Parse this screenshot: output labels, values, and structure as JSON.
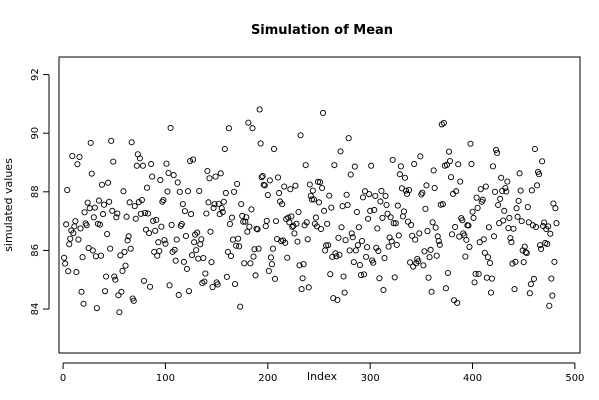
{
  "chart_data": {
    "type": "scatter",
    "title": "Simulation of Mean",
    "xlabel": "Index",
    "ylabel": "simulated values",
    "xlim": [
      -4,
      505
    ],
    "ylim": [
      82.5,
      92.6
    ],
    "xticks": [
      "0",
      "100",
      "200",
      "300",
      "400",
      "500"
    ],
    "yticks": [
      "84",
      "86",
      "88",
      "90",
      "92"
    ],
    "grid": false,
    "marker": "open-circle",
    "series": [
      {
        "values": [
          85.75,
          85.55,
          86.89,
          88.06,
          85.29,
          86.21,
          86.4,
          86.68,
          89.22,
          86.59,
          86.82,
          87.0,
          85.26,
          88.94,
          86.37,
          89.19,
          86.75,
          84.59,
          85.77,
          84.18,
          87.3,
          86.92,
          86.86,
          87.63,
          86.08,
          87.44,
          89.67,
          88.62,
          86.0,
          87.13,
          87.46,
          85.8,
          84.03,
          86.91,
          87.7,
          86.88,
          85.82,
          88.24,
          87.24,
          87.56,
          84.61,
          85.11,
          86.56,
          88.31,
          87.66,
          86.06,
          89.74,
          87.35,
          89.03,
          85.11,
          85.0,
          87.13,
          87.26,
          84.47,
          83.89,
          85.83,
          84.59,
          85.3,
          88.02,
          85.95,
          85.48,
          87.15,
          86.34,
          86.48,
          87.64,
          86.06,
          89.69,
          84.36,
          84.28,
          87.51,
          87.08,
          88.89,
          89.28,
          87.65,
          89.14,
          87.25,
          87.72,
          88.89,
          84.96,
          87.28,
          86.71,
          88.14,
          87.26,
          86.59,
          84.76,
          88.95,
          88.52,
          87.01,
          85.95,
          86.67,
          87.04,
          85.82,
          86.28,
          85.98,
          88.4,
          86.81,
          87.66,
          87.72,
          86.35,
          86.23,
          88.96,
          88.01,
          88.64,
          84.81,
          90.18,
          86.87,
          85.95,
          88.57,
          86.02,
          85.65,
          86.37,
          88.32,
          84.48,
          88.0,
          86.84,
          86.9,
          87.58,
          85.61,
          87.34,
          86.49,
          85.37,
          88.02,
          84.61,
          89.05,
          87.24,
          85.84,
          89.1,
          86.28,
          86.54,
          86.01,
          86.61,
          85.72,
          88.03,
          86.21,
          86.38,
          84.89,
          85.74,
          84.94,
          85.21,
          87.26,
          88.71,
          87.64,
          88.46,
          86.64,
          85.6,
          84.75,
          87.45,
          87.58,
          88.52,
          84.91,
          84.84,
          87.59,
          87.24,
          88.63,
          87.44,
          87.31,
          87.66,
          89.46,
          87.96,
          85.1,
          85.95,
          90.17,
          86.9,
          85.81,
          87.12,
          86.37,
          88.0,
          84.85,
          86.16,
          88.27,
          86.4,
          86.14,
          84.08,
          87.58,
          87.18,
          86.98,
          85.56,
          86.98,
          87.13,
          86.64,
          90.36,
          86.81,
          85.56,
          87.4,
          90.17,
          85.79,
          86.04,
          85.15,
          86.74,
          86.72,
          86.06,
          90.81,
          89.65,
          88.5,
          88.54,
          88.24,
          88.22,
          86.83,
          87.01,
          87.89,
          85.3,
          88.39,
          85.76,
          85.53,
          86.06,
          89.46,
          85.03,
          87.0,
          86.39,
          88.49,
          87.96,
          87.67,
          86.32,
          87.58,
          86.34,
          88.18,
          86.26,
          87.07,
          85.75,
          87.12,
          86.96,
          88.09,
          87.16,
          86.8,
          86.84,
          86.58,
          88.21,
          86.91,
          86.3,
          87.31,
          85.49,
          89.93,
          84.68,
          85.05,
          85.53,
          86.86,
          88.91,
          86.96,
          86.38,
          84.74,
          88.25,
          87.86,
          87.74,
          88.04,
          87.74,
          86.91,
          87.12,
          86.82,
          88.34,
          87.64,
          88.33,
          86.73,
          88.13,
          90.69,
          87.35,
          86.0,
          86.17,
          86.91,
          86.18,
          87.87,
          85.19,
          87.46,
          85.78,
          84.37,
          88.91,
          85.9,
          85.8,
          84.31,
          86.43,
          85.85,
          89.38,
          86.79,
          87.51,
          85.11,
          84.56,
          86.35,
          87.9,
          87.55,
          89.83,
          86.0,
          88.59,
          86.58,
          86.45,
          85.6,
          88.86,
          86.0,
          87.31,
          86.18,
          86.79,
          85.5,
          85.16,
          86.32,
          87.81,
          85.18,
          88.02,
          85.78,
          86.11,
          87.08,
          87.92,
          87.35,
          88.89,
          85.66,
          85.58,
          87.38,
          87.86,
          86.09,
          86.75,
          85.98,
          85.05,
          87.67,
          88.03,
          87.11,
          84.65,
          85.74,
          87.86,
          87.55,
          87.25,
          86.13,
          86.44,
          87.13,
          86.31,
          89.09,
          86.93,
          85.08,
          86.93,
          86.19,
          87.53,
          86.51,
          88.6,
          88.87,
          88.12,
          87.16,
          87.33,
          88.48,
          88.04,
          87.93,
          86.98,
          88.06,
          85.59,
          86.87,
          86.5,
          85.45,
          88.95,
          86.37,
          85.56,
          85.71,
          85.63,
          86.58,
          89.21,
          87.91,
          87.97,
          85.49,
          85.97,
          87.42,
          88.22,
          86.66,
          85.07,
          85.77,
          86.02,
          84.59,
          86.96,
          88.73,
          88.13,
          86.78,
          85.82,
          86.48,
          86.32,
          86.19,
          87.56,
          90.3,
          87.58,
          90.35,
          88.89,
          84.71,
          88.92,
          85.23,
          89.37,
          89.05,
          88.5,
          86.55,
          87.93,
          84.3,
          86.8,
          88.02,
          84.21,
          88.94,
          86.47,
          88.35,
          87.1,
          87.03,
          86.58,
          86.51,
          85.79,
          86.36,
          86.86,
          86.85,
          86.12,
          89.64,
          88.95,
          87.32,
          87.11,
          84.91,
          85.2,
          87.8,
          87.45,
          85.2,
          86.28,
          88.09,
          87.66,
          87.73,
          86.38,
          85.92,
          88.18,
          85.07,
          85.77,
          86.79,
          85.57,
          84.56,
          85.04,
          88.87,
          86.48,
          88.0,
          89.43,
          89.33,
          87.55,
          86.93,
          87.76,
          88.48,
          88.03,
          87.02,
          87.35,
          88.13,
          88.01,
          88.35,
          86.76,
          87.11,
          86.42,
          86.28,
          85.55,
          86.74,
          84.68,
          85.61,
          87.44,
          87.15,
          87.69,
          88.63,
          88.04,
          87.0,
          86.0,
          85.6,
          86.13,
          85.94,
          85.91,
          87.48,
          86.96,
          84.54,
          84.85,
          88.05,
          86.86,
          85.03,
          89.46,
          86.8,
          88.22,
          88.68,
          88.6,
          86.18,
          86.05,
          89.04,
          86.83,
          86.95,
          86.25,
          86.73,
          86.22,
          86.82,
          84.11,
          86.57,
          85.04,
          84.46,
          87.6,
          85.61,
          87.44,
          86.93
        ]
      }
    ]
  }
}
